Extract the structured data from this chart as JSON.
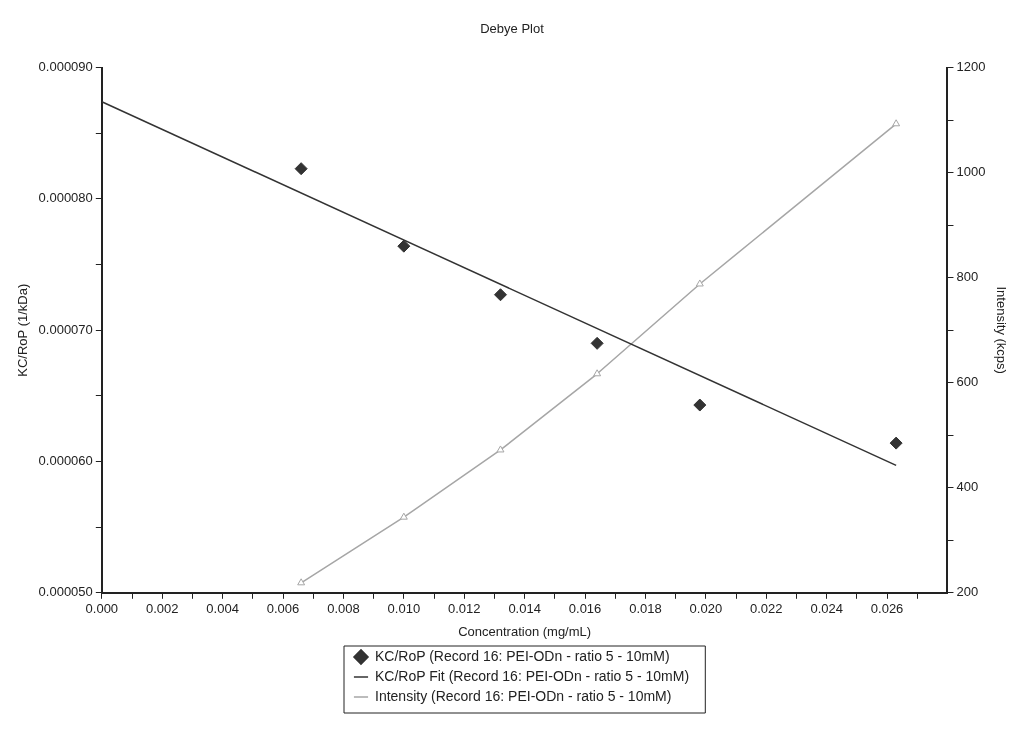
{
  "chart_data": {
    "type": "scatter",
    "title": "Debye Plot",
    "xlabel": "Concentration (mg/mL)",
    "ylabel": "KC/RoP (1/kDa)",
    "y2label": "Intensity (kcps)",
    "xlim": [
      0,
      0.028
    ],
    "xticks": [
      {
        "value": 0,
        "label": "0.000"
      },
      {
        "value": 0.001,
        "label": null
      },
      {
        "value": 0.002,
        "label": "0.002"
      },
      {
        "value": 0.003,
        "label": null
      },
      {
        "value": 0.004,
        "label": "0.004"
      },
      {
        "value": 0.005,
        "label": null
      },
      {
        "value": 0.006,
        "label": "0.006"
      },
      {
        "value": 0.007,
        "label": null
      },
      {
        "value": 0.008,
        "label": "0.008"
      },
      {
        "value": 0.009,
        "label": null
      },
      {
        "value": 0.01,
        "label": "0.010"
      },
      {
        "value": 0.011,
        "label": null
      },
      {
        "value": 0.012,
        "label": "0.012"
      },
      {
        "value": 0.013,
        "label": null
      },
      {
        "value": 0.014,
        "label": "0.014"
      },
      {
        "value": 0.015,
        "label": null
      },
      {
        "value": 0.016,
        "label": "0.016"
      },
      {
        "value": 0.017,
        "label": null
      },
      {
        "value": 0.018,
        "label": "0.018"
      },
      {
        "value": 0.019,
        "label": null
      },
      {
        "value": 0.02,
        "label": "0.020"
      },
      {
        "value": 0.021,
        "label": null
      },
      {
        "value": 0.022,
        "label": "0.022"
      },
      {
        "value": 0.023,
        "label": null
      },
      {
        "value": 0.024,
        "label": "0.024"
      },
      {
        "value": 0.025,
        "label": null
      },
      {
        "value": 0.026,
        "label": "0.026"
      },
      {
        "value": 0.027,
        "label": null
      }
    ],
    "ylim": [
      5e-05,
      9e-05
    ],
    "yticks": [
      {
        "value": 5e-05,
        "label": "0.000050"
      },
      {
        "value": 5.5e-05,
        "label": null
      },
      {
        "value": 6e-05,
        "label": "0.000060"
      },
      {
        "value": 6.5e-05,
        "label": null
      },
      {
        "value": 7e-05,
        "label": "0.000070"
      },
      {
        "value": 7.5e-05,
        "label": null
      },
      {
        "value": 8e-05,
        "label": "0.000080"
      },
      {
        "value": 8.5e-05,
        "label": null
      },
      {
        "value": 9e-05,
        "label": "0.000090"
      }
    ],
    "y2lim": [
      200,
      1200
    ],
    "y2ticks": [
      200,
      {
        "value": 300,
        "label": null
      },
      400,
      {
        "value": 500,
        "label": null
      },
      600,
      {
        "value": 700,
        "label": null
      },
      800,
      {
        "value": 900,
        "label": null
      },
      1000,
      {
        "value": 1100,
        "label": null
      },
      1200
    ],
    "grid": false,
    "legend": "bottom",
    "series": [
      {
        "name": "KC/RoP (Record 16: PEI-ODn - ratio 5 - 10mM)",
        "type": "scatter",
        "marker": "diamond",
        "color": "#333333",
        "x": [
          0.0066,
          0.01,
          0.0132,
          0.0164,
          0.0198,
          0.0263
        ],
        "values": [
          8.23e-05,
          7.64e-05,
          7.27e-05,
          6.9e-05,
          6.43e-05,
          6.14e-05
        ]
      },
      {
        "name": "KC/RoP Fit (Record 16: PEI-ODn - ratio 5 - 10mM)",
        "type": "line",
        "marker": "none",
        "line_style": "solid",
        "color": "#333333",
        "x": [
          0,
          0.0263
        ],
        "values": [
          8.74e-05,
          5.97e-05
        ]
      },
      {
        "name": "Intensity (Record 16: PEI-ODn - ratio 5 - 10mM)",
        "type": "line",
        "marker": "triangle",
        "line_style": "solid",
        "axis": "y2",
        "color": "#a6a6a6",
        "x": [
          0.0066,
          0.01,
          0.0132,
          0.0164,
          0.0198,
          0.0263
        ],
        "values": [
          219,
          344,
          472,
          617,
          788,
          1093
        ]
      }
    ]
  }
}
